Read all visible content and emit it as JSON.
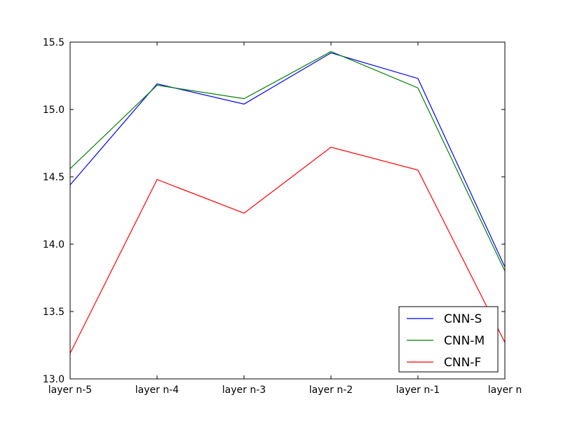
{
  "chart_data": {
    "type": "line",
    "categories": [
      "layer n-5",
      "layer n-4",
      "layer n-3",
      "layer n-2",
      "layer n-1",
      "layer n"
    ],
    "series": [
      {
        "name": "CNN-S",
        "color": "#0000ff",
        "values": [
          14.44,
          15.19,
          15.04,
          15.42,
          15.23,
          13.83
        ]
      },
      {
        "name": "CNN-M",
        "color": "#008000",
        "values": [
          14.56,
          15.18,
          15.08,
          15.43,
          15.16,
          13.8
        ]
      },
      {
        "name": "CNN-F",
        "color": "#ff0000",
        "values": [
          13.19,
          14.48,
          14.23,
          14.72,
          14.55,
          13.27
        ]
      }
    ],
    "yticks": [
      "13.0",
      "13.5",
      "14.0",
      "14.5",
      "15.0",
      "15.5"
    ],
    "ylim": [
      13.0,
      15.5
    ],
    "grid": false,
    "legend": "lower-right"
  }
}
